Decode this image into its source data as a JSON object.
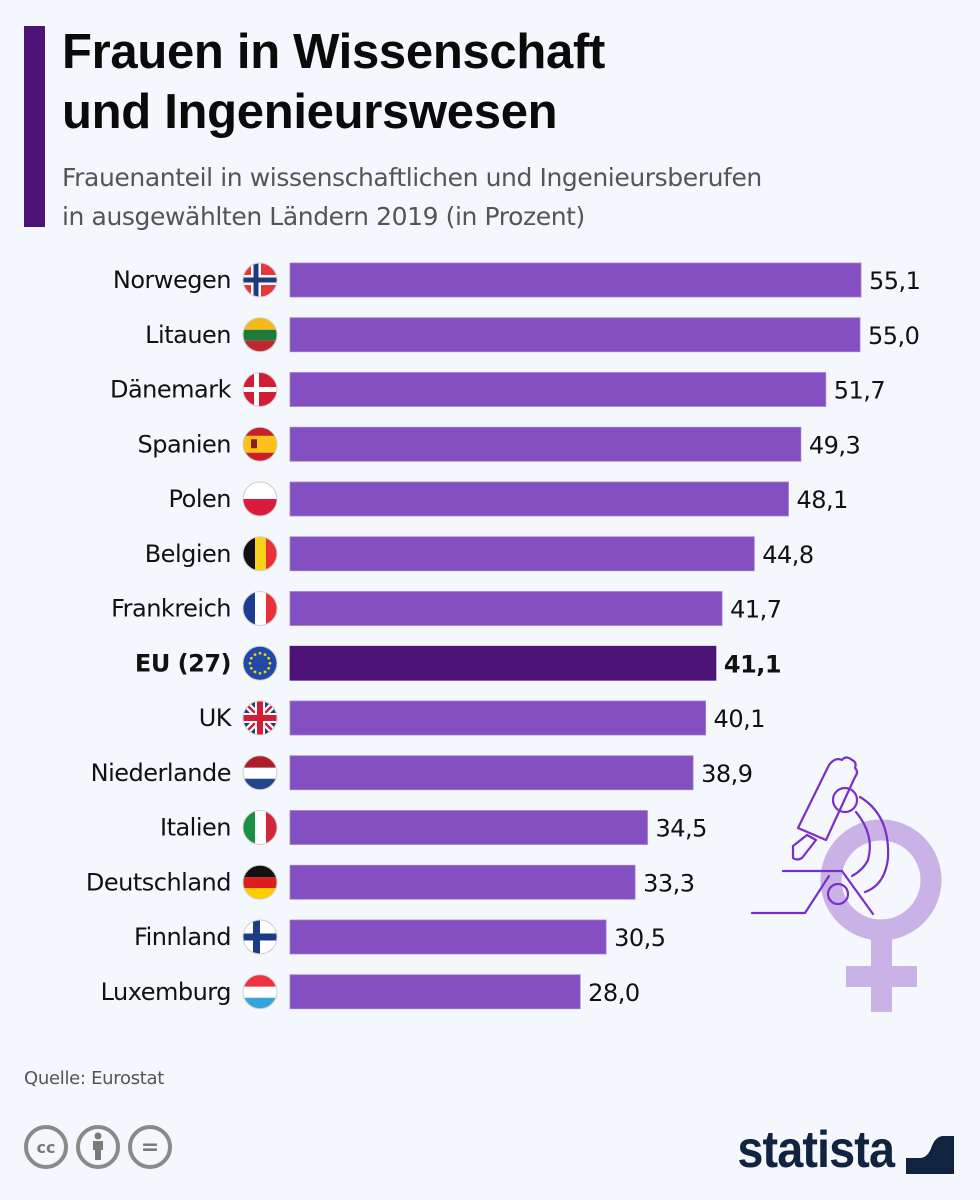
{
  "header": {
    "title_line1": "Frauen in Wissenschaft",
    "title_line2": "und Ingenieurswesen",
    "subtitle_line1": "Frauenanteil in wissenschaftlichen und Ingenieursberufen",
    "subtitle_line2": "in ausgewählten Ländern 2019 (in Prozent)"
  },
  "colors": {
    "accent": "#4e1379",
    "bar": "#834fc1",
    "bar_highlight": "#4e1379",
    "illustration_light": "#c9b3e6",
    "illustration_line": "#7b2fc9",
    "logo": "#10243f"
  },
  "chart_data": {
    "type": "bar",
    "orientation": "horizontal",
    "title": "Frauen in Wissenschaft und Ingenieurswesen",
    "subtitle": "Frauenanteil in wissenschaftlichen und Ingenieursberufen in ausgewählten Ländern 2019 (in Prozent)",
    "xlabel": "",
    "ylabel": "",
    "xlim": [
      0,
      55.1
    ],
    "grid": false,
    "legend": "none",
    "unit": "%",
    "decimal_separator": ",",
    "categories": [
      "Norwegen",
      "Litauen",
      "Dänemark",
      "Spanien",
      "Polen",
      "Belgien",
      "Frankreich",
      "EU (27)",
      "UK",
      "Niederlande",
      "Italien",
      "Deutschland",
      "Finnland",
      "Luxemburg"
    ],
    "values": [
      55.1,
      55.0,
      51.7,
      49.3,
      48.1,
      44.8,
      41.7,
      41.1,
      40.1,
      38.9,
      34.5,
      33.3,
      30.5,
      28.0
    ],
    "value_labels": [
      "55,1",
      "55,0",
      "51,7",
      "49,3",
      "48,1",
      "44,8",
      "41,7",
      "41,1",
      "40,1",
      "38,9",
      "34,5",
      "33,3",
      "30,5",
      "28,0"
    ],
    "flags": [
      "flag-norway",
      "flag-lithuania",
      "flag-denmark",
      "flag-spain",
      "flag-poland",
      "flag-belgium",
      "flag-france",
      "flag-eu",
      "flag-uk",
      "flag-netherlands",
      "flag-italy",
      "flag-germany",
      "flag-finland",
      "flag-luxembourg"
    ],
    "highlighted": [
      "EU (27)"
    ]
  },
  "illustration": {
    "icon": "microscope-female-symbol-icon"
  },
  "footer": {
    "source": "Quelle: Eurostat",
    "license_icons": [
      "cc-icon",
      "attribution-icon",
      "no-derivatives-icon"
    ],
    "cc_label": "cc",
    "nd_label": "=",
    "logo_text": "statista"
  }
}
